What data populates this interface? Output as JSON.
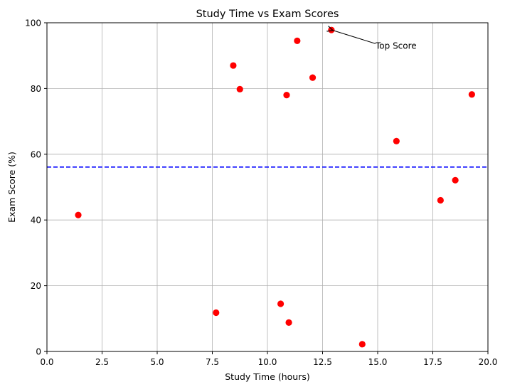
{
  "chart_data": {
    "type": "scatter",
    "title": "Study Time vs Exam Scores",
    "xlabel": "Study Time (hours)",
    "ylabel": "Exam Score (%)",
    "xlim": [
      0,
      20
    ],
    "ylim": [
      0,
      100
    ],
    "xticks": [
      0.0,
      2.5,
      5.0,
      7.5,
      10.0,
      12.5,
      15.0,
      17.5,
      20.0
    ],
    "xtick_labels": [
      "0.0",
      "2.5",
      "5.0",
      "7.5",
      "10.0",
      "12.5",
      "15.0",
      "17.5",
      "20.0"
    ],
    "yticks": [
      0,
      20,
      40,
      60,
      80,
      100
    ],
    "ytick_labels": [
      "0",
      "20",
      "40",
      "60",
      "80",
      "100"
    ],
    "grid": true,
    "point_color": "#ff0000",
    "points": [
      {
        "x": 1.42,
        "y": 41.5
      },
      {
        "x": 7.67,
        "y": 11.8
      },
      {
        "x": 8.45,
        "y": 87.0
      },
      {
        "x": 8.75,
        "y": 79.8
      },
      {
        "x": 10.6,
        "y": 14.5
      },
      {
        "x": 10.87,
        "y": 78.0
      },
      {
        "x": 10.97,
        "y": 8.8
      },
      {
        "x": 11.35,
        "y": 94.5
      },
      {
        "x": 12.05,
        "y": 83.3
      },
      {
        "x": 12.9,
        "y": 97.8
      },
      {
        "x": 14.3,
        "y": 2.2
      },
      {
        "x": 15.85,
        "y": 64.0
      },
      {
        "x": 17.85,
        "y": 46.0
      },
      {
        "x": 18.52,
        "y": 52.1
      },
      {
        "x": 19.27,
        "y": 78.2
      }
    ],
    "reference_line": {
      "y": 56.1,
      "color": "#0000ff",
      "style": "dashed"
    },
    "annotation": {
      "text": "Top Score",
      "point": {
        "x": 12.9,
        "y": 97.8
      },
      "text_position": {
        "x": 15.0,
        "y": 93.0
      }
    }
  }
}
